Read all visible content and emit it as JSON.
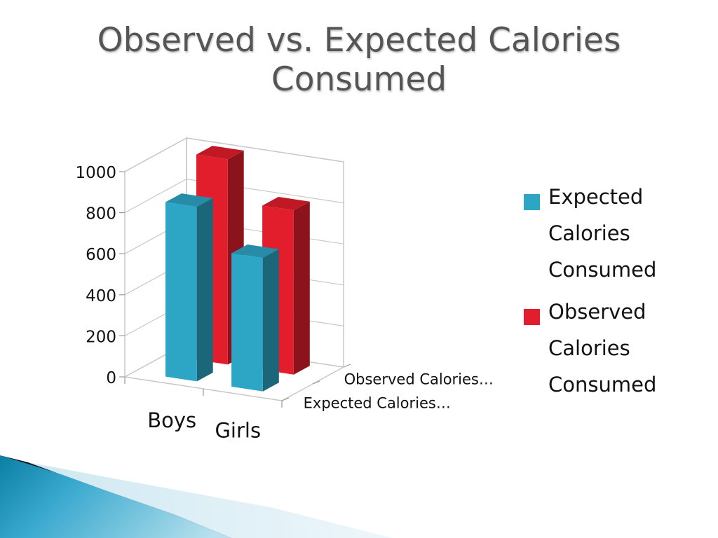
{
  "slide": {
    "title_lines": [
      "Observed vs. Expected Calories",
      "Consumed"
    ]
  },
  "chart_data": {
    "type": "bar",
    "title": "Observed vs. Expected Calories Consumed",
    "categories": [
      "Boys",
      "Girls"
    ],
    "depth_labels": [
      "Observed Calories…",
      "Expected Calories…"
    ],
    "series": [
      {
        "name": "Expected Calories Consumed",
        "values": [
          850,
          650
        ],
        "color": "#2da5c5"
      },
      {
        "name": "Observed Calories Consumed",
        "values": [
          1000,
          800
        ],
        "color": "#e21d2c"
      }
    ],
    "yticks": [
      "0",
      "200",
      "400",
      "600",
      "800",
      "1000"
    ],
    "ylim": [
      0,
      1000
    ],
    "grid": true,
    "style": "3d-column",
    "legend_position": "right",
    "legend": [
      {
        "label_lines": [
          "Expected",
          "Calories",
          "Consumed"
        ],
        "color": "#2da5c5"
      },
      {
        "label_lines": [
          "Observed",
          "Calories",
          "Consumed"
        ],
        "color": "#e21d2c"
      }
    ]
  }
}
